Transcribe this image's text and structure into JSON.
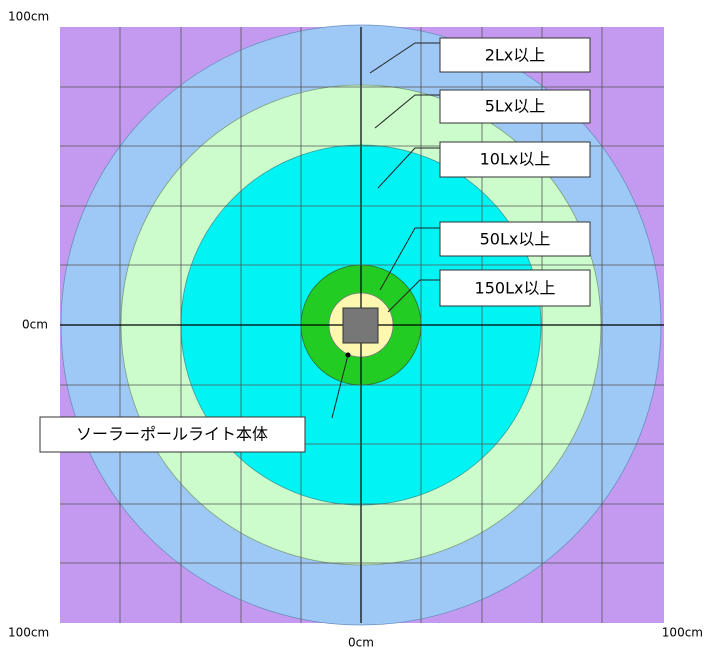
{
  "axis_labels": {
    "top_left": "100cm",
    "middle_left": "0cm",
    "bottom_left": "100cm",
    "bottom_center": "0cm",
    "bottom_right": "100cm"
  },
  "zones": [
    {
      "label": "2Lx以上"
    },
    {
      "label": "5Lx以上"
    },
    {
      "label": "10Lx以上"
    },
    {
      "label": "50Lx以上"
    },
    {
      "label": "150Lx以上"
    }
  ],
  "body_label": "ソーラーポールライト本体"
}
